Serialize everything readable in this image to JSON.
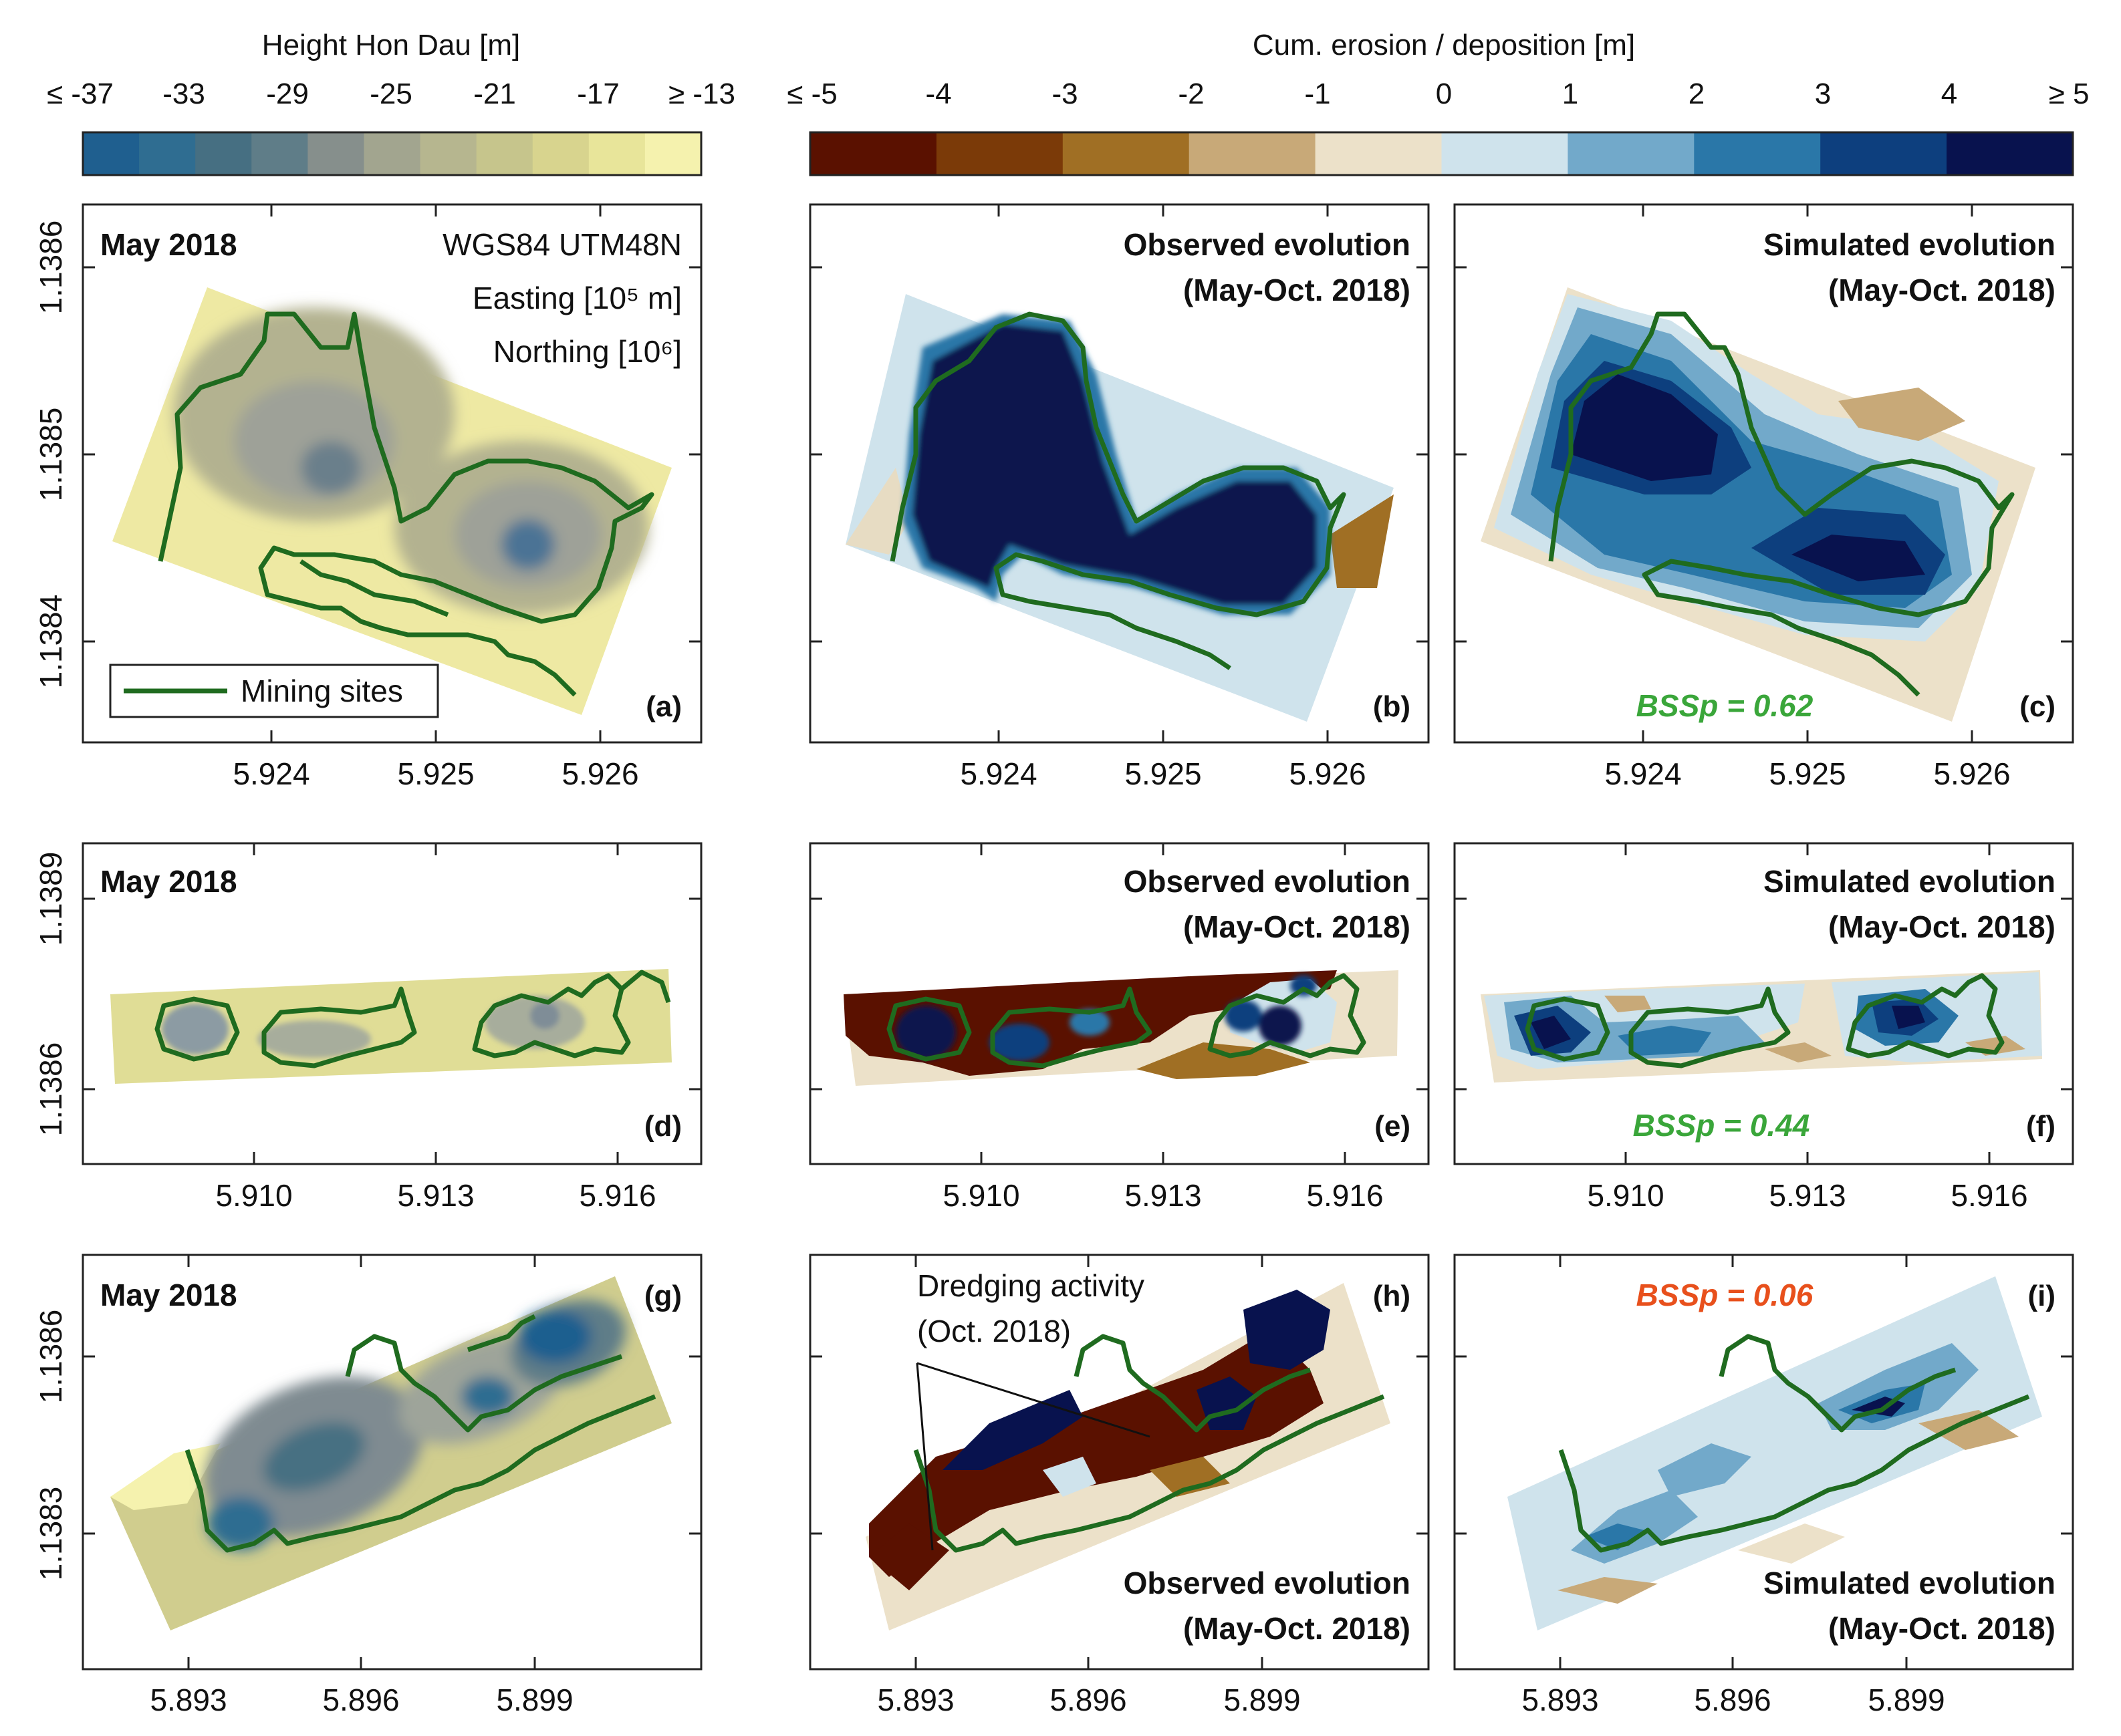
{
  "colors": {
    "height_scale": [
      "#1f5f8f",
      "#2f6d91",
      "#466f82",
      "#5f7d88",
      "#868f8c",
      "#a2a58f",
      "#b6b68f",
      "#c6c58c",
      "#d8d48e",
      "#e8e59a",
      "#f5f2ae"
    ],
    "erosion_scale": [
      "#5a1100",
      "#7b3a08",
      "#a06f24",
      "#c8a978",
      "#ece1c9",
      "#cfe3ec",
      "#72a9ca",
      "#2a77a8",
      "#0d3f7e",
      "#08124e"
    ],
    "mining": "#1f6b1f",
    "bss_good": "#3aa63a",
    "bss_bad": "#e8501c",
    "frame": "#222222"
  },
  "legend_height": {
    "title": "Height Hon Dau [m]",
    "ticks": [
      "≤ -37",
      "-33",
      "-29",
      "-25",
      "-21",
      "-17",
      "≥ -13"
    ],
    "range": [
      -37,
      -13
    ]
  },
  "legend_erosion": {
    "title": "Cum. erosion / deposition [m]",
    "ticks": [
      "≤ -5",
      "-4",
      "-3",
      "-2",
      "-1",
      "0",
      "1",
      "2",
      "3",
      "4",
      "≥ 5"
    ],
    "range": [
      -5,
      5
    ]
  },
  "rows": [
    {
      "xticks": [
        "5.924",
        "5.925",
        "5.926"
      ],
      "yticks": [
        "1.1386",
        "1.1385",
        "1.1384"
      ],
      "panels": [
        {
          "letter": "(a)",
          "date": "May 2018",
          "info": [
            "WGS84 UTM48N",
            "Easting [10⁵ m]",
            "Northing [10⁶]"
          ],
          "legend_label": "Mining sites"
        },
        {
          "letter": "(b)",
          "title1": "Observed evolution",
          "title2": "(May-Oct. 2018)"
        },
        {
          "letter": "(c)",
          "title1": "Simulated evolution",
          "title2": "(May-Oct. 2018)",
          "bss": "BSSp = 0.62"
        }
      ]
    },
    {
      "xticks": [
        "5.910",
        "5.913",
        "5.916"
      ],
      "yticks": [
        "1.1389",
        "1.1386"
      ],
      "panels": [
        {
          "letter": "(d)",
          "date": "May 2018"
        },
        {
          "letter": "(e)",
          "title1": "Observed evolution",
          "title2": "(May-Oct. 2018)"
        },
        {
          "letter": "(f)",
          "title1": "Simulated evolution",
          "title2": "(May-Oct. 2018)",
          "bss": "BSSp = 0.44"
        }
      ]
    },
    {
      "xticks": [
        "5.893",
        "5.896",
        "5.899"
      ],
      "yticks": [
        "1.1386",
        "1.1383"
      ],
      "panels": [
        {
          "letter": "(g)",
          "date": "May 2018"
        },
        {
          "letter": "(h)",
          "title1": "Observed evolution",
          "title2": "(May-Oct. 2018)",
          "note1": "Dredging activity",
          "note2": "(Oct. 2018)"
        },
        {
          "letter": "(i)",
          "title1": "Simulated evolution",
          "title2": "(May-Oct. 2018)",
          "bss": "BSSp = 0.06"
        }
      ]
    }
  ],
  "chart_data": [
    {
      "type": "heatmap",
      "title": "Height Hon Dau [m]",
      "panel": "(a)",
      "site": "row 1",
      "period": "May 2018",
      "metric": "bathymetry"
    },
    {
      "type": "heatmap",
      "panel": "(b)",
      "site": "row 1",
      "metric": "cumulative erosion/deposition",
      "source": "observed"
    },
    {
      "type": "heatmap",
      "panel": "(c)",
      "site": "row 1",
      "metric": "cumulative erosion/deposition",
      "source": "simulated",
      "BSSp": 0.62
    },
    {
      "type": "heatmap",
      "panel": "(d)",
      "site": "row 2",
      "period": "May 2018",
      "metric": "bathymetry"
    },
    {
      "type": "heatmap",
      "panel": "(e)",
      "site": "row 2",
      "metric": "cumulative erosion/deposition",
      "source": "observed"
    },
    {
      "type": "heatmap",
      "panel": "(f)",
      "site": "row 2",
      "metric": "cumulative erosion/deposition",
      "source": "simulated",
      "BSSp": 0.44
    },
    {
      "type": "heatmap",
      "panel": "(g)",
      "site": "row 3",
      "period": "May 2018",
      "metric": "bathymetry"
    },
    {
      "type": "heatmap",
      "panel": "(h)",
      "site": "row 3",
      "metric": "cumulative erosion/deposition",
      "source": "observed"
    },
    {
      "type": "heatmap",
      "panel": "(i)",
      "site": "row 3",
      "metric": "cumulative erosion/deposition",
      "source": "simulated",
      "BSSp": 0.06
    }
  ]
}
